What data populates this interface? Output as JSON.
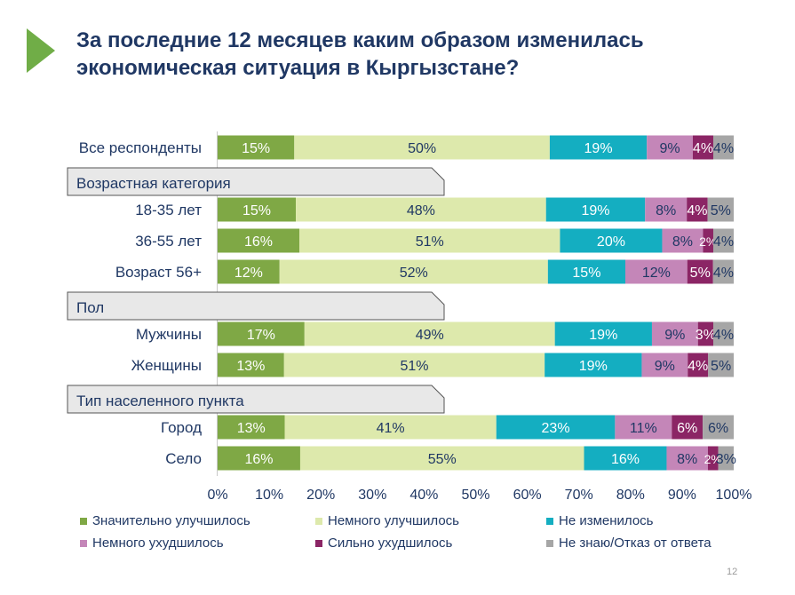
{
  "slide": {
    "title_lines": [
      "За последние 12 месяцев каким образом изменилась",
      "экономическая ситуация в Кыргызстане?"
    ],
    "page_number": "12"
  },
  "colors": {
    "accent": "#70AD47",
    "title": "#203864",
    "series": [
      "#7FA845",
      "#DDE9AC",
      "#14AEC1",
      "#C486B8",
      "#8B2565",
      "#A6A6A6"
    ],
    "section_bg": "#E8E8E8"
  },
  "chart_data": {
    "type": "bar",
    "orientation": "horizontal",
    "stacked": true,
    "rows": [
      {
        "kind": "category",
        "label": "Все респонденты",
        "values": [
          15,
          50,
          19,
          9,
          4,
          4
        ]
      },
      {
        "kind": "section",
        "label": "Возрастная категория"
      },
      {
        "kind": "category",
        "label": "18-35 лет",
        "values": [
          15,
          48,
          19,
          8,
          4,
          5
        ]
      },
      {
        "kind": "category",
        "label": "36-55 лет",
        "values": [
          16,
          51,
          20,
          8,
          2,
          4
        ]
      },
      {
        "kind": "category",
        "label": "Возраст 56+",
        "values": [
          12,
          52,
          15,
          12,
          5,
          4
        ]
      },
      {
        "kind": "section",
        "label": "Пол"
      },
      {
        "kind": "category",
        "label": "Мужчины",
        "values": [
          17,
          49,
          19,
          9,
          3,
          4
        ]
      },
      {
        "kind": "category",
        "label": "Женщины",
        "values": [
          13,
          51,
          19,
          9,
          4,
          5
        ]
      },
      {
        "kind": "section",
        "label": "Тип населенного пункта"
      },
      {
        "kind": "category",
        "label": "Город",
        "values": [
          13,
          41,
          23,
          11,
          6,
          6
        ]
      },
      {
        "kind": "category",
        "label": "Село",
        "values": [
          16,
          55,
          16,
          8,
          2,
          3
        ]
      }
    ],
    "series": [
      {
        "name": "Значительно улучшилось",
        "color": "#7FA845"
      },
      {
        "name": "Немного улучшилось",
        "color": "#DDE9AC"
      },
      {
        "name": "Не изменилось",
        "color": "#14AEC1"
      },
      {
        "name": "Немного ухудшилось",
        "color": "#C486B8"
      },
      {
        "name": "Сильно ухудшилось",
        "color": "#8B2565"
      },
      {
        "name": "Не знаю/Отказ от ответа",
        "color": "#A6A6A6"
      }
    ],
    "x_ticks": [
      "0%",
      "10%",
      "20%",
      "30%",
      "40%",
      "50%",
      "60%",
      "70%",
      "80%",
      "90%",
      "100%"
    ],
    "xlim": [
      0,
      100
    ],
    "legend_position": "bottom"
  }
}
